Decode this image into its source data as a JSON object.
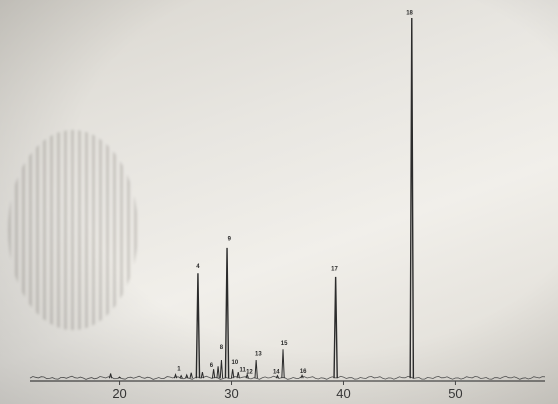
{
  "chart_data": {
    "type": "line",
    "title": "",
    "xlabel": "",
    "ylabel": "",
    "xlim": [
      12,
      58
    ],
    "ylim": [
      0,
      100
    ],
    "grid": false,
    "legend": "none",
    "x_ticks": [
      20,
      30,
      40,
      50
    ],
    "x_tick_labels": [
      "20",
      "30",
      "40",
      "50"
    ],
    "peaks": [
      {
        "label": "",
        "x": 19.2,
        "y": 1.8
      },
      {
        "label": "",
        "x": 20.0,
        "y": 0.8
      },
      {
        "label": "",
        "x": 25.0,
        "y": 1.5
      },
      {
        "label": "",
        "x": 25.5,
        "y": 1.2
      },
      {
        "label": "",
        "x": 26.0,
        "y": 1.4
      },
      {
        "label": "",
        "x": 26.4,
        "y": 2.0
      },
      {
        "label": "4",
        "x": 27.0,
        "y": 29.5
      },
      {
        "label": "",
        "x": 27.4,
        "y": 2.2
      },
      {
        "label": "",
        "x": 28.4,
        "y": 3.0
      },
      {
        "label": "",
        "x": 28.8,
        "y": 3.8
      },
      {
        "label": "",
        "x": 29.1,
        "y": 5.5
      },
      {
        "label": "9",
        "x": 29.6,
        "y": 36.5
      },
      {
        "label": "10",
        "x": 30.1,
        "y": 3.0
      },
      {
        "label": "",
        "x": 30.6,
        "y": 2.2
      },
      {
        "label": "",
        "x": 31.4,
        "y": 1.5
      },
      {
        "label": "13",
        "x": 32.2,
        "y": 5.5
      },
      {
        "label": "14",
        "x": 34.1,
        "y": 1.2
      },
      {
        "label": "15",
        "x": 34.6,
        "y": 8.5
      },
      {
        "label": "16",
        "x": 36.3,
        "y": 1.3
      },
      {
        "label": "17",
        "x": 39.3,
        "y": 28.5
      },
      {
        "label": "18",
        "x": 46.1,
        "y": 100
      }
    ],
    "peak_annotations": [
      {
        "label": "4",
        "x": 27.0,
        "y": 31.0
      },
      {
        "label": "9",
        "x": 29.8,
        "y": 38.5
      },
      {
        "label": "1",
        "x": 25.3,
        "y": 2.6
      },
      {
        "label": "6",
        "x": 28.2,
        "y": 3.6
      },
      {
        "label": "8",
        "x": 29.1,
        "y": 8.5
      },
      {
        "label": "10",
        "x": 30.3,
        "y": 4.4
      },
      {
        "label": "11",
        "x": 31.0,
        "y": 2.3
      },
      {
        "label": "12",
        "x": 31.6,
        "y": 1.8
      },
      {
        "label": "13",
        "x": 32.4,
        "y": 6.7
      },
      {
        "label": "14",
        "x": 34.0,
        "y": 1.8
      },
      {
        "label": "15",
        "x": 34.7,
        "y": 9.7
      },
      {
        "label": "16",
        "x": 36.4,
        "y": 1.9
      },
      {
        "label": "17",
        "x": 39.2,
        "y": 30.2
      },
      {
        "label": "18",
        "x": 45.9,
        "y": 101.0
      }
    ]
  }
}
